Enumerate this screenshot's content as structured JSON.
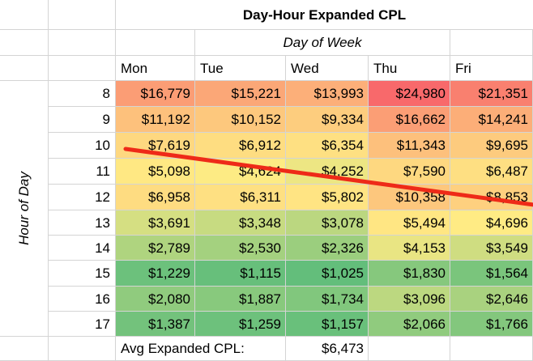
{
  "chart_data": {
    "type": "heatmap",
    "title": "Day-Hour Expanded CPL",
    "xlabel": "Day of Week",
    "ylabel": "Hour of Day",
    "columns": [
      "Mon",
      "Tue",
      "Wed",
      "Thu",
      "Fri"
    ],
    "rows": [
      "8",
      "9",
      "10",
      "11",
      "12",
      "13",
      "14",
      "15",
      "16",
      "17"
    ],
    "values": [
      [
        16779,
        15221,
        13993,
        24980,
        21351
      ],
      [
        11192,
        10152,
        9334,
        16662,
        14241
      ],
      [
        7619,
        6912,
        6354,
        11343,
        9695
      ],
      [
        5098,
        4624,
        4252,
        7590,
        6487
      ],
      [
        6958,
        6311,
        5802,
        10358,
        8853
      ],
      [
        3691,
        3348,
        3078,
        5494,
        4696
      ],
      [
        2789,
        2530,
        2326,
        4153,
        3549
      ],
      [
        1229,
        1115,
        1025,
        1830,
        1564
      ],
      [
        2080,
        1887,
        1734,
        3096,
        2646
      ],
      [
        1387,
        1259,
        1157,
        2066,
        1766
      ]
    ],
    "labels": [
      [
        "$16,779",
        "$15,221",
        "$13,993",
        "$24,980",
        "$21,351"
      ],
      [
        "$11,192",
        "$10,152",
        "$9,334",
        "$16,662",
        "$14,241"
      ],
      [
        "$7,619",
        "$6,912",
        "$6,354",
        "$11,343",
        "$9,695"
      ],
      [
        "$5,098",
        "$4,624",
        "$4,252",
        "$7,590",
        "$6,487"
      ],
      [
        "$6,958",
        "$6,311",
        "$5,802",
        "$10,358",
        "$8,853"
      ],
      [
        "$3,691",
        "$3,348",
        "$3,078",
        "$5,494",
        "$4,696"
      ],
      [
        "$2,789",
        "$2,530",
        "$2,326",
        "$4,153",
        "$3,549"
      ],
      [
        "$1,229",
        "$1,115",
        "$1,025",
        "$1,830",
        "$1,564"
      ],
      [
        "$2,080",
        "$1,887",
        "$1,734",
        "$3,096",
        "$2,646"
      ],
      [
        "$1,387",
        "$1,259",
        "$1,157",
        "$2,066",
        "$1,766"
      ]
    ],
    "color_scale": {
      "low": "#63be7b",
      "mid": "#ffeb84",
      "high": "#f8696b"
    },
    "summary": {
      "label": "Avg Expanded CPL:",
      "value": "$6,473"
    },
    "trend_line": {
      "color": "#ee2a18",
      "from": {
        "row": "10",
        "col": "Mon"
      },
      "to": {
        "row": "12",
        "col": "Fri"
      }
    },
    "grid": true
  }
}
